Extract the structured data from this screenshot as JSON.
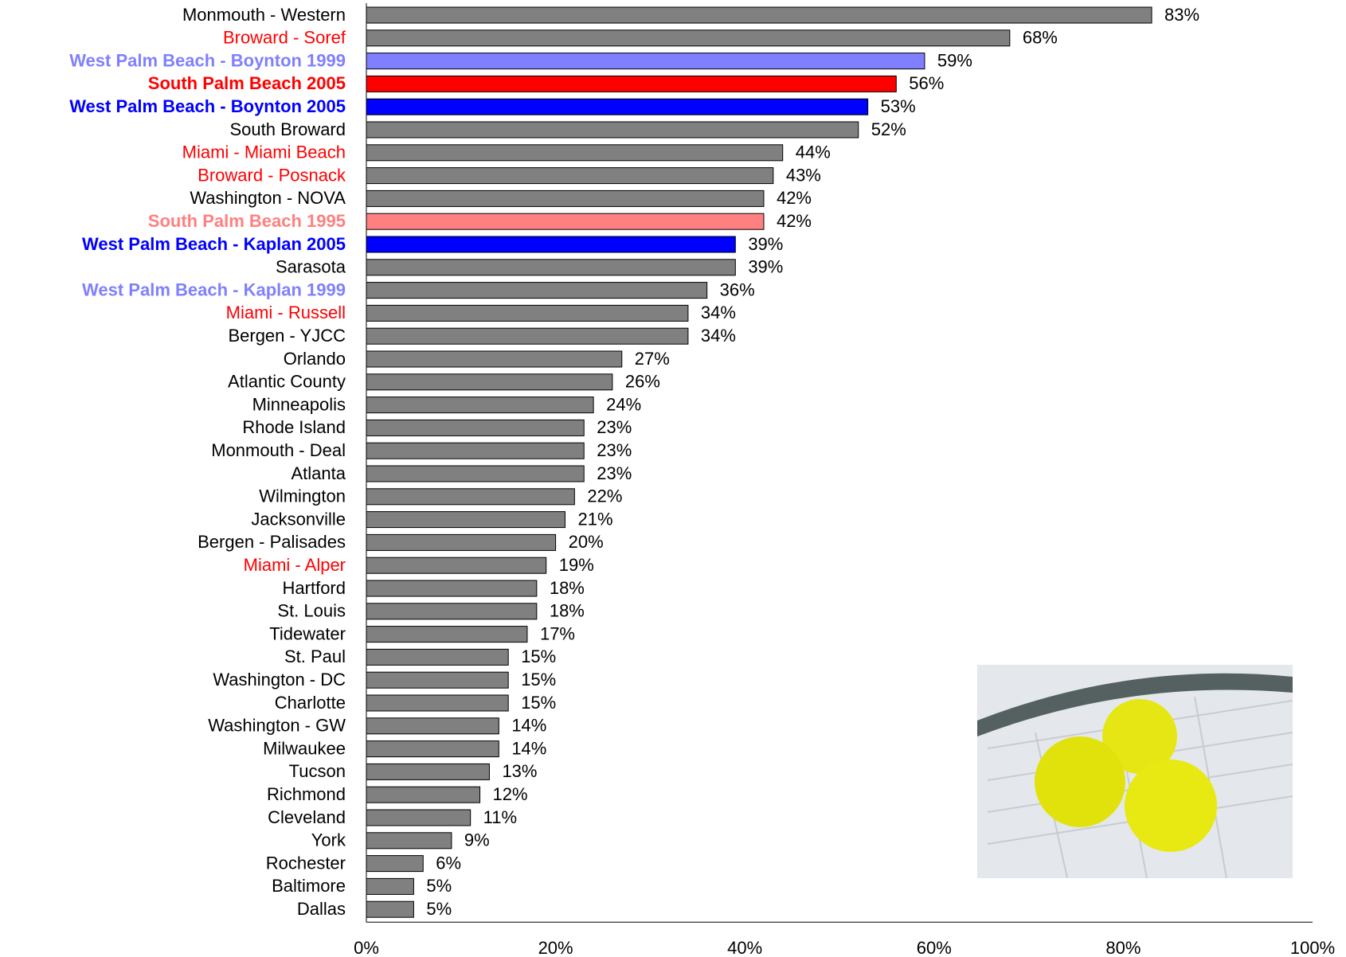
{
  "chart_data": {
    "type": "hbar",
    "categories": [
      "Monmouth - Western",
      "Broward - Soref",
      "West Palm Beach - Boynton 1999",
      "South Palm Beach 2005",
      "West Palm Beach - Boynton 2005",
      "South Broward",
      "Miami - Miami Beach",
      "Broward - Posnack",
      "Washington - NOVA",
      "South Palm Beach 1995",
      "West Palm Beach - Kaplan 2005",
      "Sarasota",
      "West Palm Beach - Kaplan 1999",
      "Miami - Russell",
      "Bergen - YJCC",
      "Orlando",
      "Atlantic County",
      "Minneapolis",
      "Rhode Island",
      "Monmouth - Deal",
      "Atlanta",
      "Wilmington",
      "Jacksonville",
      "Bergen - Palisades",
      "Miami - Alper",
      "Hartford",
      "St. Louis",
      "Tidewater",
      "St. Paul",
      "Washington - DC",
      "Charlotte",
      "Washington - GW",
      "Milwaukee",
      "Tucson",
      "Richmond",
      "Cleveland",
      "York",
      "Rochester",
      "Baltimore",
      "Dallas"
    ],
    "values": [
      83,
      68,
      59,
      56,
      53,
      52,
      44,
      43,
      42,
      42,
      39,
      39,
      36,
      34,
      34,
      27,
      26,
      24,
      23,
      23,
      23,
      22,
      21,
      20,
      19,
      18,
      18,
      17,
      15,
      15,
      15,
      14,
      14,
      13,
      12,
      11,
      9,
      6,
      5,
      5
    ],
    "value_labels": [
      "83%",
      "68%",
      "59%",
      "56%",
      "53%",
      "52%",
      "44%",
      "43%",
      "42%",
      "42%",
      "39%",
      "39%",
      "36%",
      "34%",
      "34%",
      "27%",
      "26%",
      "24%",
      "23%",
      "23%",
      "23%",
      "22%",
      "21%",
      "20%",
      "19%",
      "18%",
      "18%",
      "17%",
      "15%",
      "15%",
      "15%",
      "14%",
      "14%",
      "13%",
      "12%",
      "11%",
      "9%",
      "6%",
      "5%",
      "5%"
    ],
    "bar_colors": [
      "#808080",
      "#808080",
      "#8080ff",
      "#ff0000",
      "#0000ff",
      "#808080",
      "#808080",
      "#808080",
      "#808080",
      "#ff8080",
      "#0000ff",
      "#808080",
      "#808080",
      "#808080",
      "#808080",
      "#808080",
      "#808080",
      "#808080",
      "#808080",
      "#808080",
      "#808080",
      "#808080",
      "#808080",
      "#808080",
      "#808080",
      "#808080",
      "#808080",
      "#808080",
      "#808080",
      "#808080",
      "#808080",
      "#808080",
      "#808080",
      "#808080",
      "#808080",
      "#808080",
      "#808080",
      "#808080",
      "#808080",
      "#808080"
    ],
    "label_colors": [
      "#000000",
      "#ff0000",
      "#8080ff",
      "#ff0000",
      "#0000ff",
      "#000000",
      "#ff0000",
      "#ff0000",
      "#000000",
      "#ff8080",
      "#0000ff",
      "#000000",
      "#8080ff",
      "#ff0000",
      "#000000",
      "#000000",
      "#000000",
      "#000000",
      "#000000",
      "#000000",
      "#000000",
      "#000000",
      "#000000",
      "#000000",
      "#ff0000",
      "#000000",
      "#000000",
      "#000000",
      "#000000",
      "#000000",
      "#000000",
      "#000000",
      "#000000",
      "#000000",
      "#000000",
      "#000000",
      "#000000",
      "#000000",
      "#000000",
      "#000000"
    ],
    "label_bold": [
      false,
      false,
      true,
      true,
      true,
      false,
      false,
      false,
      false,
      true,
      true,
      false,
      true,
      false,
      false,
      false,
      false,
      false,
      false,
      false,
      false,
      false,
      false,
      false,
      false,
      false,
      false,
      false,
      false,
      false,
      false,
      false,
      false,
      false,
      false,
      false,
      false,
      false,
      false,
      false
    ],
    "xlim": [
      0,
      100
    ],
    "xticks": [
      {
        "value": 0,
        "label": "0%"
      },
      {
        "value": 20,
        "label": "20%"
      },
      {
        "value": 40,
        "label": "40%"
      },
      {
        "value": 60,
        "label": "60%"
      },
      {
        "value": 80,
        "label": "80%"
      },
      {
        "value": 100,
        "label": "100%"
      }
    ],
    "grid": false
  }
}
